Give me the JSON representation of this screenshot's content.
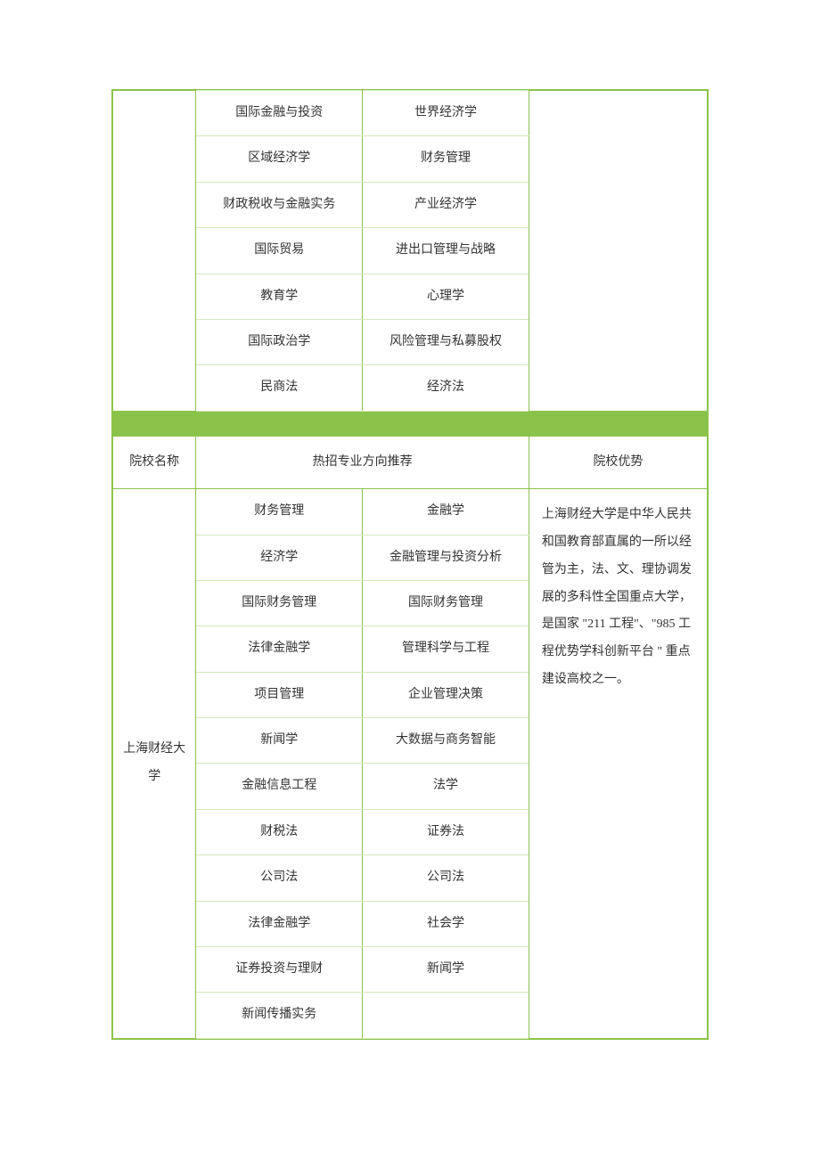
{
  "border_color": "#8bc34a",
  "inner_border_color": "#d4e8b8",
  "separator_color": "#8bc34a",
  "text_color": "#333333",
  "font_family": "SimSun",
  "font_size_pt": 10.5,
  "section1": {
    "rows": [
      {
        "c1": "国际金融与投资",
        "c2": "世界经济学"
      },
      {
        "c1": "区域经济学",
        "c2": "财务管理"
      },
      {
        "c1": "财政税收与金融实务",
        "c2": "产业经济学"
      },
      {
        "c1": "国际贸易",
        "c2": "进出口管理与战略"
      },
      {
        "c1": "教育学",
        "c2": "心理学"
      },
      {
        "c1": "国际政治学",
        "c2": "风险管理与私募股权"
      },
      {
        "c1": "民商法",
        "c2": "经济法"
      }
    ]
  },
  "header": {
    "school": "院校名称",
    "majors": "热招专业方向推荐",
    "advantage": "院校优势"
  },
  "section2": {
    "school_name": "上海财经大学",
    "advantage_text": "上海财经大学是中华人民共和国教育部直属的一所以经管为主，法、文、理协调发展的多科性全国重点大学，是国家 \"211 工程\"、\"985 工程优势学科创新平台 \" 重点建设高校之一。",
    "rows": [
      {
        "c1": "财务管理",
        "c2": "金融学"
      },
      {
        "c1": "经济学",
        "c2": "金融管理与投资分析"
      },
      {
        "c1": "国际财务管理",
        "c2": "国际财务管理"
      },
      {
        "c1": "法律金融学",
        "c2": "管理科学与工程"
      },
      {
        "c1": "项目管理",
        "c2": "企业管理决策"
      },
      {
        "c1": "新闻学",
        "c2": "大数据与商务智能"
      },
      {
        "c1": "金融信息工程",
        "c2": "法学"
      },
      {
        "c1": "财税法",
        "c2": "证券法"
      },
      {
        "c1": "公司法",
        "c2": "公司法"
      },
      {
        "c1": "法律金融学",
        "c2": "社会学"
      },
      {
        "c1": "证券投资与理财",
        "c2": "新闻学"
      },
      {
        "c1": "新闻传播实务",
        "c2": ""
      }
    ]
  }
}
